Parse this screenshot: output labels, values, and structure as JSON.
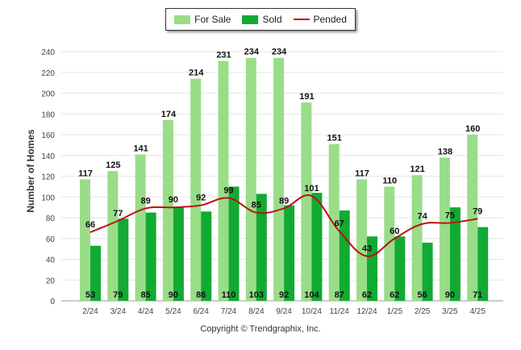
{
  "chart_data": {
    "type": "bar",
    "ylabel": "Number of Homes",
    "ylim": [
      0,
      240
    ],
    "yticks": [
      0,
      20,
      40,
      60,
      80,
      100,
      120,
      140,
      160,
      180,
      200,
      220,
      240
    ],
    "grid": true,
    "legend_placement": "top-center",
    "categories": [
      "2/24",
      "3/24",
      "4/24",
      "5/24",
      "6/24",
      "7/24",
      "8/24",
      "9/24",
      "10/24",
      "11/24",
      "12/24",
      "1/25",
      "2/25",
      "3/25",
      "4/25"
    ],
    "series": [
      {
        "name": "For Sale",
        "kind": "bar",
        "color": "#99dd88",
        "values": [
          117,
          125,
          141,
          174,
          214,
          231,
          234,
          234,
          191,
          151,
          117,
          110,
          121,
          138,
          160
        ]
      },
      {
        "name": "Sold",
        "kind": "bar",
        "color": "#11aa33",
        "values": [
          53,
          79,
          85,
          90,
          86,
          110,
          103,
          92,
          104,
          87,
          62,
          62,
          56,
          90,
          71
        ]
      },
      {
        "name": "Pended",
        "kind": "line",
        "color": "#bb1111",
        "values": [
          66,
          77,
          89,
          90,
          92,
          99,
          85,
          89,
          101,
          67,
          43,
          60,
          74,
          75,
          79
        ]
      }
    ]
  },
  "footer": {
    "copyright": "Copyright © Trendgraphix, Inc."
  },
  "colors": {
    "for_sale": "#99dd88",
    "sold": "#11aa33",
    "pended": "#bb1111",
    "grid": "#e6e6e6"
  }
}
